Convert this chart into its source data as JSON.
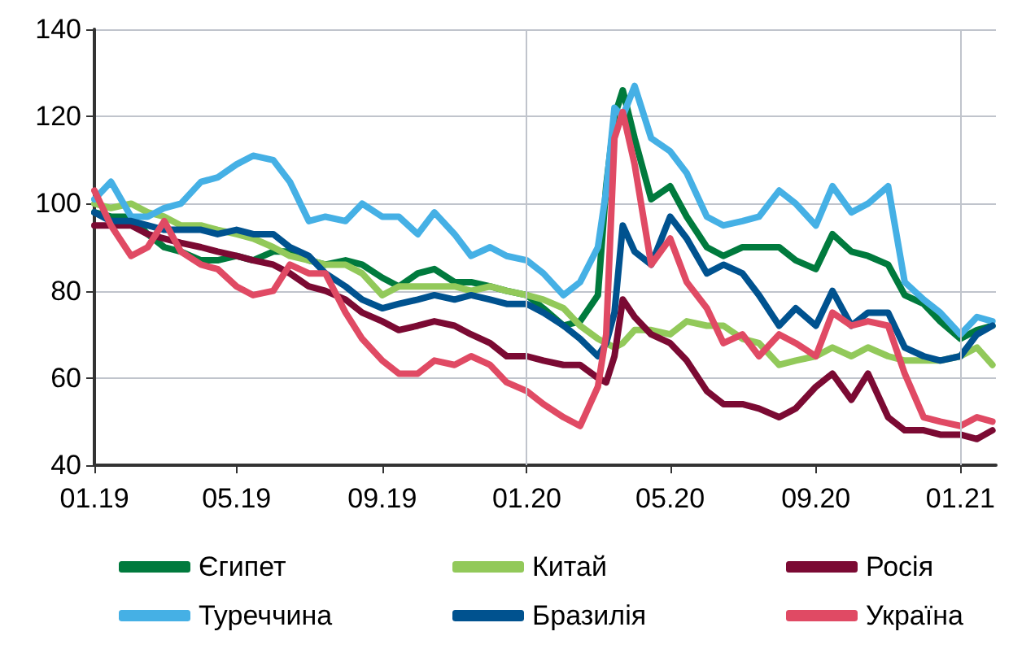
{
  "chart_data": {
    "type": "line",
    "x": [
      "2019-01-01",
      "2019-01-15",
      "2019-02-01",
      "2019-02-15",
      "2019-03-01",
      "2019-03-15",
      "2019-04-01",
      "2019-04-15",
      "2019-05-01",
      "2019-05-15",
      "2019-06-01",
      "2019-06-15",
      "2019-07-01",
      "2019-07-15",
      "2019-08-01",
      "2019-08-15",
      "2019-09-01",
      "2019-09-15",
      "2019-10-01",
      "2019-10-15",
      "2019-11-01",
      "2019-11-15",
      "2019-12-01",
      "2019-12-15",
      "2020-01-01",
      "2020-01-15",
      "2020-02-01",
      "2020-02-15",
      "2020-03-01",
      "2020-03-08",
      "2020-03-15",
      "2020-03-22",
      "2020-04-01",
      "2020-04-15",
      "2020-05-01",
      "2020-05-15",
      "2020-06-01",
      "2020-06-15",
      "2020-07-01",
      "2020-07-15",
      "2020-08-01",
      "2020-08-15",
      "2020-09-01",
      "2020-09-15",
      "2020-10-01",
      "2020-10-15",
      "2020-11-01",
      "2020-11-15",
      "2020-12-01",
      "2020-12-15",
      "2021-01-01",
      "2021-01-15",
      "2021-01-28"
    ],
    "series": [
      {
        "name": "Єгипет",
        "color": "#007a3d",
        "values": [
          98,
          97,
          97,
          93,
          90,
          89,
          87,
          87,
          88,
          87,
          89,
          89,
          87,
          86,
          87,
          86,
          83,
          81,
          84,
          85,
          82,
          82,
          81,
          80,
          79,
          76,
          72,
          73,
          79,
          104,
          120,
          126,
          115,
          101,
          104,
          97,
          90,
          88,
          90,
          90,
          90,
          87,
          85,
          93,
          89,
          88,
          86,
          79,
          77,
          73,
          69,
          71,
          72
        ]
      },
      {
        "name": "Китай",
        "color": "#92c95a",
        "values": [
          100,
          99,
          100,
          98,
          97,
          95,
          95,
          94,
          93,
          92,
          90,
          88,
          87,
          86,
          86,
          84,
          79,
          81,
          81,
          81,
          81,
          80,
          81,
          80,
          79,
          78,
          76,
          72,
          69,
          68,
          67,
          68,
          71,
          71,
          70,
          73,
          72,
          72,
          69,
          68,
          63,
          64,
          65,
          67,
          65,
          67,
          65,
          64,
          64,
          64,
          65,
          67,
          63
        ]
      },
      {
        "name": "Росія",
        "color": "#7b0a33",
        "values": [
          95,
          95,
          95,
          93,
          92,
          91,
          90,
          89,
          88,
          87,
          86,
          84,
          81,
          80,
          78,
          75,
          73,
          71,
          72,
          73,
          72,
          70,
          68,
          65,
          65,
          64,
          63,
          63,
          60,
          59,
          65,
          78,
          74,
          70,
          68,
          64,
          57,
          54,
          54,
          53,
          51,
          53,
          58,
          61,
          55,
          61,
          51,
          48,
          48,
          47,
          47,
          46,
          48
        ]
      },
      {
        "name": "Туреччина",
        "color": "#45b0e5",
        "values": [
          101,
          105,
          97,
          97,
          99,
          100,
          105,
          106,
          109,
          111,
          110,
          105,
          96,
          97,
          96,
          100,
          97,
          97,
          93,
          98,
          93,
          88,
          90,
          88,
          87,
          84,
          79,
          82,
          90,
          103,
          122,
          120,
          127,
          115,
          112,
          107,
          97,
          95,
          96,
          97,
          103,
          100,
          95,
          104,
          98,
          100,
          104,
          82,
          78,
          75,
          70,
          74,
          73
        ]
      },
      {
        "name": "Бразилія",
        "color": "#00528f",
        "values": [
          98,
          96,
          96,
          95,
          94,
          94,
          94,
          93,
          94,
          93,
          93,
          90,
          88,
          84,
          81,
          78,
          76,
          77,
          78,
          79,
          78,
          79,
          78,
          77,
          77,
          75,
          72,
          69,
          65,
          68,
          75,
          95,
          89,
          86,
          97,
          92,
          84,
          86,
          84,
          79,
          72,
          76,
          72,
          80,
          72,
          75,
          75,
          67,
          65,
          64,
          65,
          70,
          72
        ]
      },
      {
        "name": "Україна",
        "color": "#e04a64",
        "values": [
          103,
          95,
          88,
          90,
          96,
          89,
          86,
          85,
          81,
          79,
          80,
          86,
          84,
          84,
          75,
          69,
          64,
          61,
          61,
          64,
          63,
          65,
          63,
          59,
          57,
          54,
          51,
          49,
          58,
          70,
          115,
          121,
          109,
          86,
          92,
          82,
          76,
          68,
          70,
          65,
          70,
          68,
          65,
          75,
          72,
          73,
          72,
          61,
          51,
          50,
          49,
          51,
          50
        ]
      }
    ],
    "xlim": [
      "2019-01-01",
      "2021-01-31"
    ],
    "xticks": [
      {
        "value": "2019-01-01",
        "label": "01.19"
      },
      {
        "value": "2019-05-01",
        "label": "05.19"
      },
      {
        "value": "2019-09-01",
        "label": "09.19"
      },
      {
        "value": "2020-01-01",
        "label": "01.20"
      },
      {
        "value": "2020-05-01",
        "label": "05.20"
      },
      {
        "value": "2020-09-01",
        "label": "09.20"
      },
      {
        "value": "2021-01-01",
        "label": "01.21"
      }
    ],
    "ylim": [
      40,
      140
    ],
    "yticks": [
      40,
      60,
      80,
      100,
      120,
      140
    ],
    "grid": "y",
    "legend": "bottom",
    "marker": "none",
    "line_style": "solid",
    "ref_lines": [
      {
        "axis": "x",
        "value": "2020-01-01",
        "label": null,
        "color": "#c0c4cc"
      },
      {
        "axis": "x",
        "value": "2021-01-01",
        "label": null,
        "color": "#c0c4cc"
      }
    ]
  }
}
